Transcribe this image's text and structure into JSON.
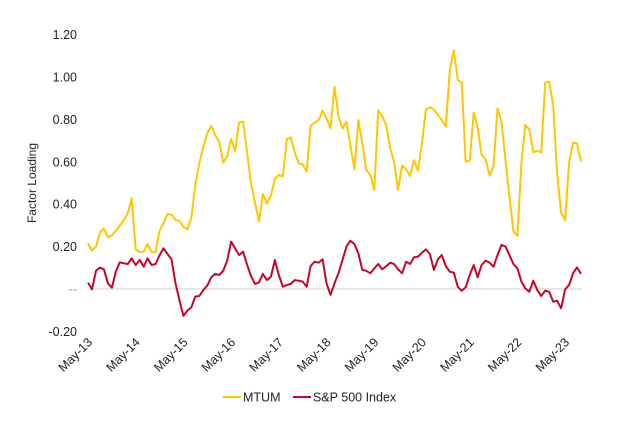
{
  "chart_data": {
    "type": "line",
    "title": "",
    "xlabel": "",
    "ylabel": "Factor Loading",
    "ylim": [
      -0.2,
      1.2
    ],
    "y_ticks": [
      1.2,
      1.0,
      0.8,
      0.6,
      0.4,
      0.2,
      0,
      -0.2
    ],
    "y_tick_labels": [
      "1.20",
      "1.00",
      "0.80",
      "0.60",
      "0.40",
      "0.20",
      "--",
      "-0.20"
    ],
    "x_start": "May-13",
    "x_frequency": "monthly",
    "x_tick_labels": [
      "May-13",
      "May-14",
      "May-15",
      "May-16",
      "May-17",
      "May-18",
      "May-19",
      "May-20",
      "May-21",
      "May-22",
      "May-23"
    ],
    "grid": "zero line only",
    "legend_position": "bottom",
    "series": [
      {
        "name": "MTUM",
        "color": "#FFC600",
        "values": [
          0.215,
          0.181,
          0.2,
          0.266,
          0.286,
          0.244,
          0.253,
          0.275,
          0.299,
          0.325,
          0.357,
          0.428,
          0.187,
          0.175,
          0.176,
          0.212,
          0.173,
          0.175,
          0.275,
          0.31,
          0.354,
          0.351,
          0.325,
          0.321,
          0.294,
          0.281,
          0.338,
          0.491,
          0.593,
          0.671,
          0.734,
          0.77,
          0.726,
          0.695,
          0.596,
          0.627,
          0.708,
          0.651,
          0.785,
          0.789,
          0.648,
          0.498,
          0.407,
          0.318,
          0.447,
          0.404,
          0.44,
          0.519,
          0.538,
          0.53,
          0.706,
          0.715,
          0.645,
          0.593,
          0.588,
          0.553,
          0.769,
          0.785,
          0.797,
          0.841,
          0.805,
          0.758,
          0.954,
          0.813,
          0.758,
          0.789,
          0.679,
          0.564,
          0.797,
          0.687,
          0.561,
          0.538,
          0.467,
          0.844,
          0.813,
          0.774,
          0.664,
          0.601,
          0.467,
          0.582,
          0.564,
          0.533,
          0.608,
          0.558,
          0.687,
          0.847,
          0.857,
          0.847,
          0.821,
          0.797,
          0.766,
          1.033,
          1.127,
          0.986,
          0.973,
          0.601,
          0.605,
          0.832,
          0.766,
          0.632,
          0.612,
          0.535,
          0.577,
          0.852,
          0.789,
          0.608,
          0.436,
          0.274,
          0.25,
          0.593,
          0.774,
          0.753,
          0.645,
          0.653,
          0.645,
          0.973,
          0.978,
          0.868,
          0.546,
          0.36,
          0.325,
          0.596,
          0.69,
          0.687,
          0.601
        ]
      },
      {
        "name": "S&P 500 Index",
        "color": "#C0092A",
        "values": [
          0.03,
          -0.002,
          0.086,
          0.101,
          0.093,
          0.027,
          0.006,
          0.082,
          0.126,
          0.121,
          0.118,
          0.145,
          0.113,
          0.137,
          0.105,
          0.145,
          0.113,
          0.118,
          0.16,
          0.192,
          0.165,
          0.14,
          0.027,
          -0.052,
          -0.127,
          -0.102,
          -0.086,
          -0.036,
          -0.033,
          -0.005,
          0.016,
          0.055,
          0.071,
          0.066,
          0.086,
          0.134,
          0.223,
          0.192,
          0.16,
          0.176,
          0.116,
          0.061,
          0.024,
          0.031,
          0.071,
          0.042,
          0.058,
          0.137,
          0.066,
          0.011,
          0.019,
          0.024,
          0.042,
          0.039,
          0.035,
          0.011,
          0.108,
          0.129,
          0.124,
          0.14,
          0.027,
          -0.028,
          0.027,
          0.074,
          0.137,
          0.2,
          0.228,
          0.212,
          0.168,
          0.09,
          0.086,
          0.074,
          0.097,
          0.118,
          0.093,
          0.108,
          0.124,
          0.118,
          0.093,
          0.074,
          0.129,
          0.118,
          0.149,
          0.153,
          0.171,
          0.187,
          0.165,
          0.09,
          0.14,
          0.16,
          0.108,
          0.082,
          0.077,
          0.011,
          -0.008,
          0.008,
          0.066,
          0.113,
          0.055,
          0.113,
          0.134,
          0.124,
          0.105,
          0.16,
          0.208,
          0.2,
          0.16,
          0.118,
          0.097,
          0.035,
          0.003,
          -0.013,
          0.039,
          -0.005,
          -0.033,
          -0.008,
          -0.013,
          -0.06,
          -0.055,
          -0.091,
          -0.002,
          0.019,
          0.074,
          0.102,
          0.071
        ]
      }
    ]
  }
}
